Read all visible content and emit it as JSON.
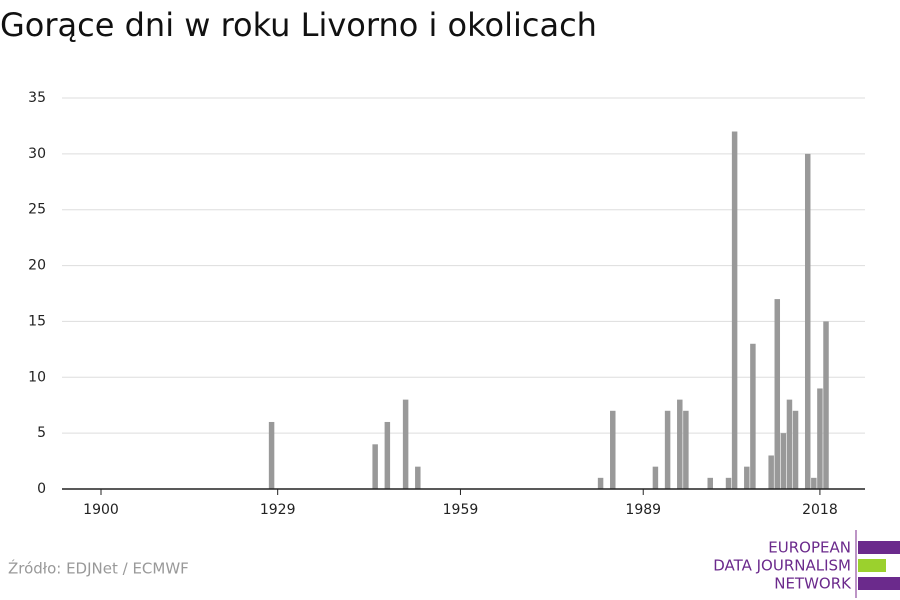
{
  "chart_data": {
    "type": "bar",
    "title": "Gorące dni w roku Livorno i okolicach",
    "x": [
      1928,
      1945,
      1947,
      1950,
      1952,
      1982,
      1984,
      1991,
      1993,
      1995,
      1996,
      2000,
      2003,
      2004,
      2006,
      2007,
      2010,
      2011,
      2012,
      2013,
      2014,
      2016,
      2017,
      2018,
      2019
    ],
    "values": [
      6,
      4,
      6,
      8,
      2,
      1,
      7,
      2,
      7,
      8,
      7,
      1,
      1,
      32,
      2,
      13,
      3,
      17,
      5,
      8,
      7,
      30,
      1,
      9,
      15
    ],
    "color": "#999999",
    "xlim": [
      1893.6,
      2025.4
    ],
    "xticks": [
      1900,
      1929,
      1959,
      1989,
      2018
    ],
    "ylim": [
      0,
      35
    ],
    "yticks": [
      0,
      5,
      10,
      15,
      20,
      25,
      30,
      35
    ],
    "grid": true
  },
  "source": "Źródło: EDJNet / ECMWF",
  "logo": [
    "EUROPEAN",
    "DATA JOURNALISM",
    "NETWORK"
  ]
}
